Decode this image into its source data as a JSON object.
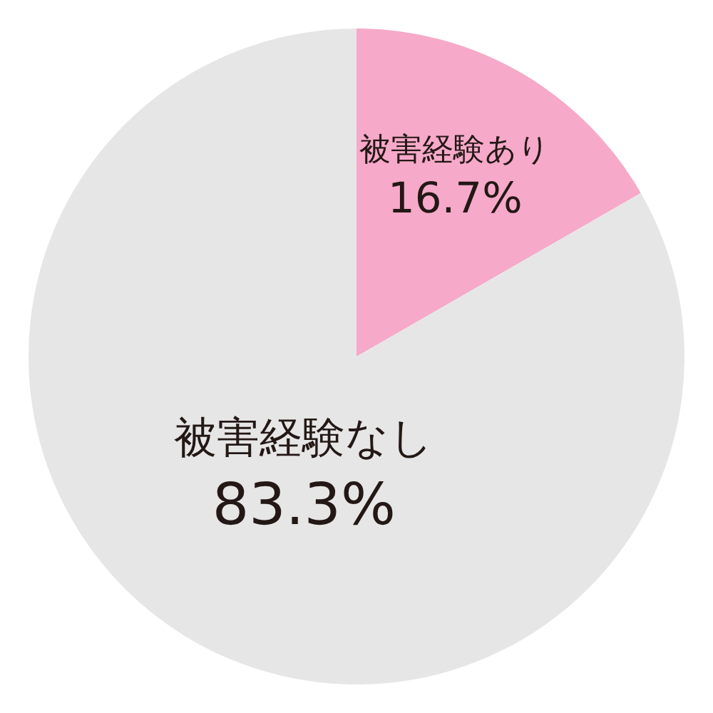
{
  "chart_data": {
    "type": "pie",
    "categories": [
      "被害経験あり",
      "被害経験なし"
    ],
    "values": [
      16.7,
      83.3
    ],
    "colors": [
      "#f6a9c9",
      "#e6e6e6"
    ],
    "value_labels": [
      "16.7%",
      "83.3%"
    ],
    "legend": false
  }
}
